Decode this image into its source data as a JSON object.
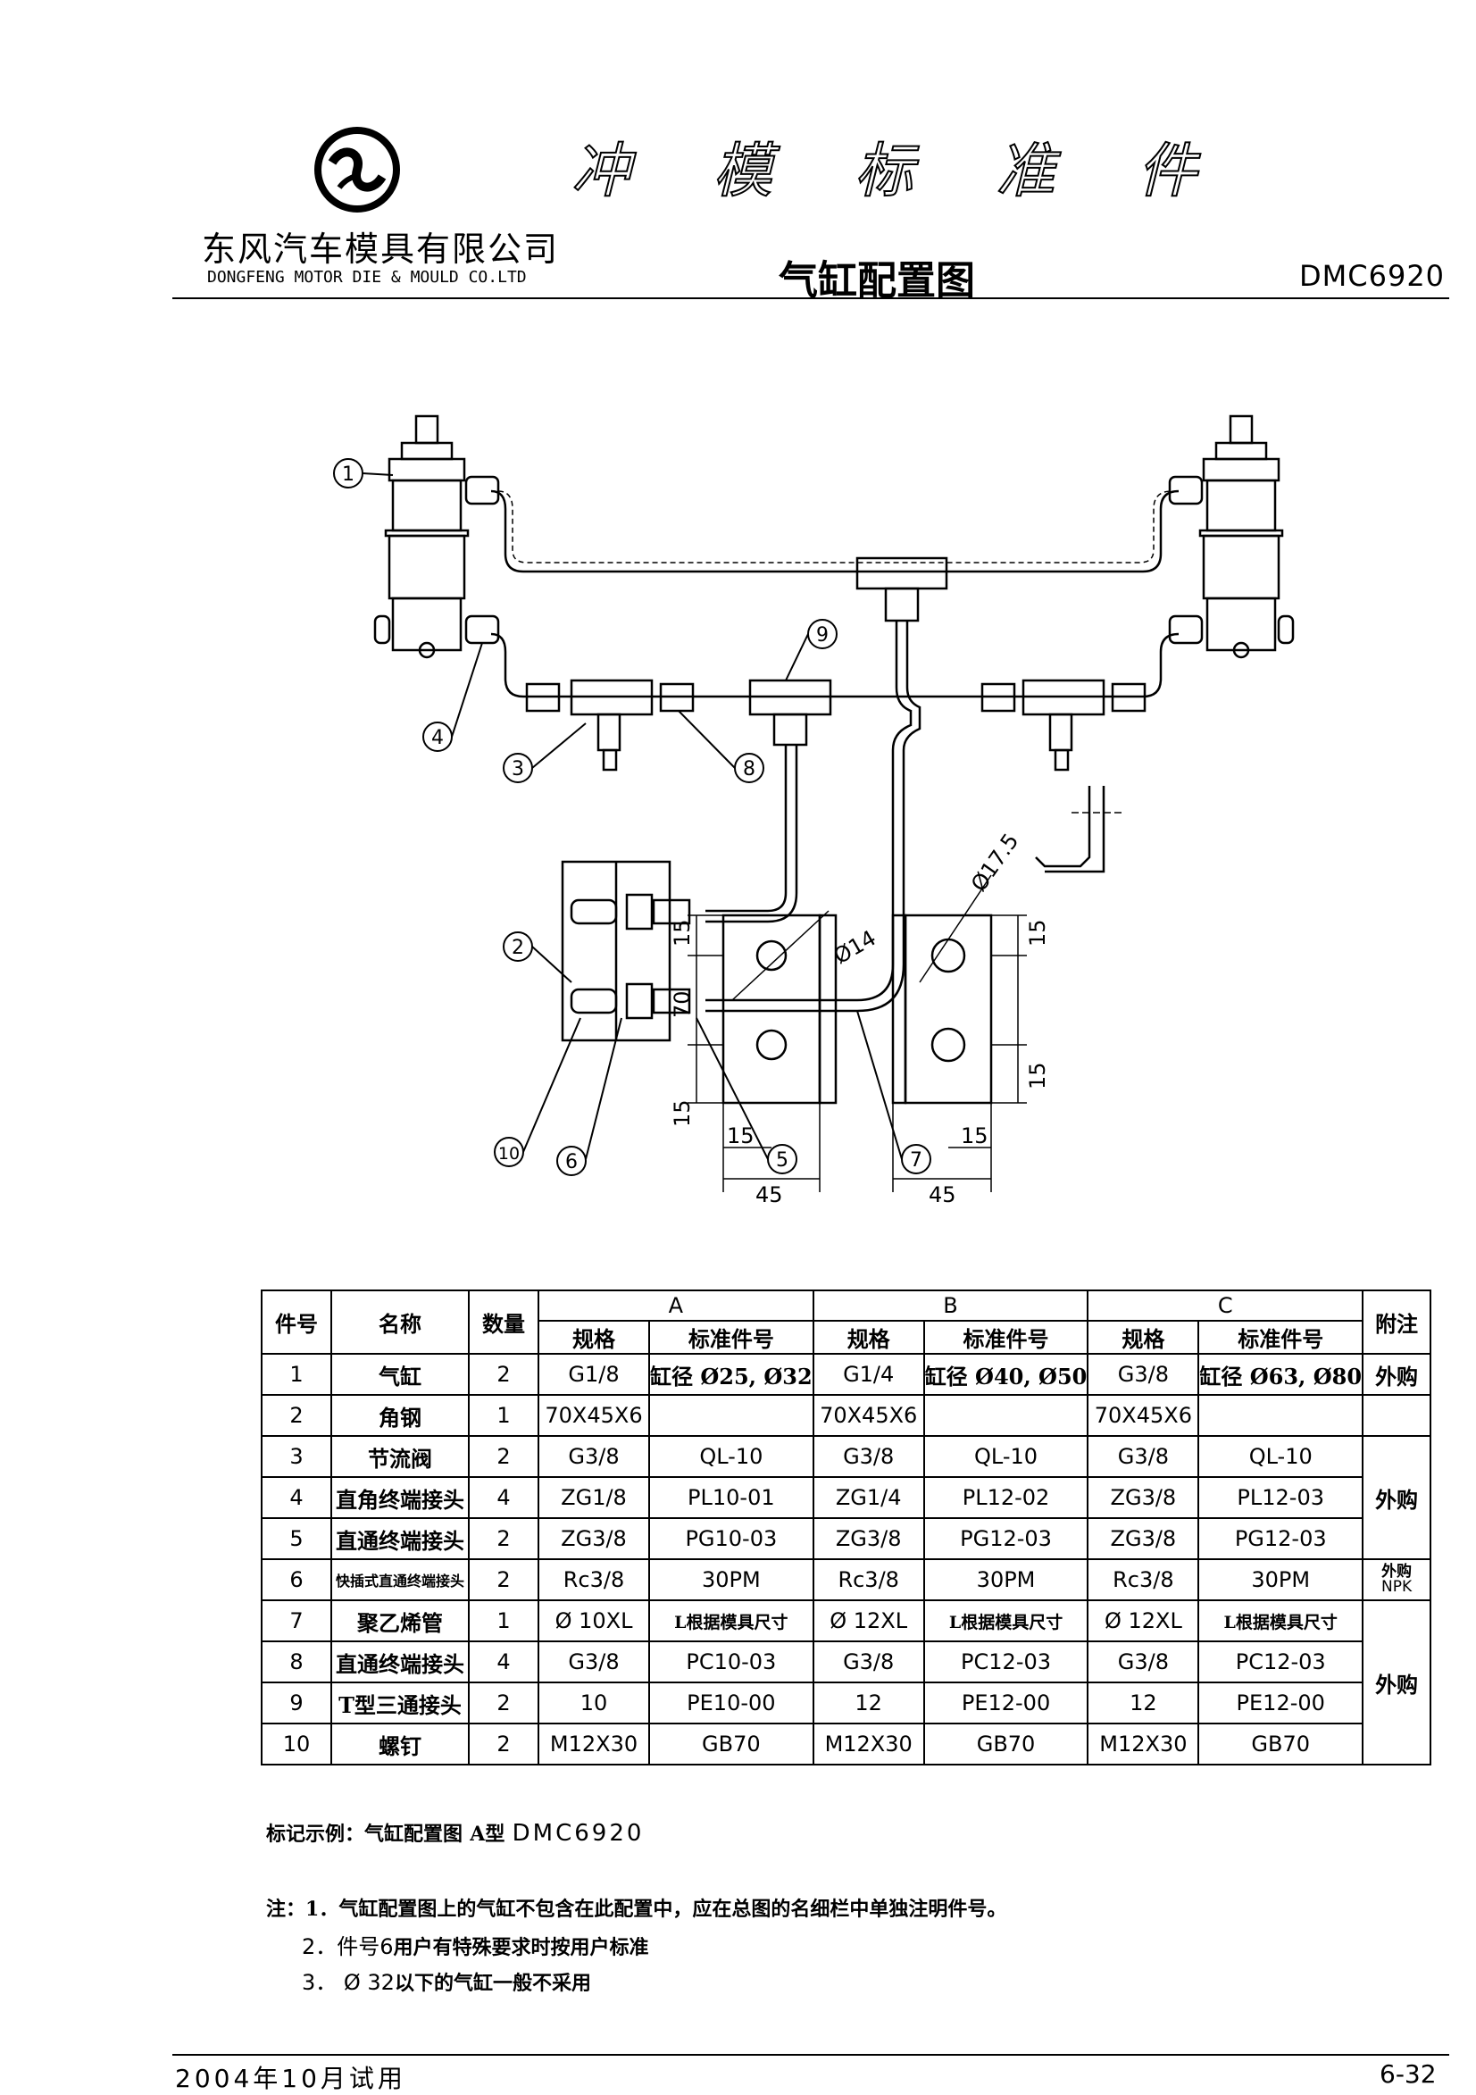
{
  "header": {
    "main_title_chars": [
      "冲",
      "模",
      "标",
      "准",
      "件"
    ],
    "company_cn": "东风汽车模具有限公司",
    "company_en": "DONGFENG MOTOR DIE & MOULD CO.LTD",
    "subtitle": "气缸配置图",
    "code": "DMC6920"
  },
  "drawing": {
    "callouts": [
      "1",
      "2",
      "3",
      "4",
      "5",
      "6",
      "7",
      "8",
      "9",
      "10"
    ],
    "dimensions": {
      "d14": "Ø14",
      "d175": "Ø17.5",
      "left_top": "15",
      "left_mid": "70",
      "left_bot": "15",
      "left_x15": "15",
      "left_w45": "45",
      "right_top": "15",
      "right_bot": "15",
      "right_x15": "15",
      "right_w45": "45"
    }
  },
  "table": {
    "headers": {
      "item": "件号",
      "name": "名称",
      "qty": "数量",
      "group_a": "A",
      "group_b": "B",
      "group_c": "C",
      "spec": "规格",
      "std": "标准件号",
      "remark": "附注"
    },
    "rows": [
      {
        "no": "1",
        "name": "气缸",
        "qty": "2",
        "a_spec": "G1/8",
        "a_std": "缸径 Ø25, Ø32",
        "b_spec": "G1/4",
        "b_std": "缸径 Ø40, Ø50",
        "c_spec": "G3/8",
        "c_std": "缸径 Ø63, Ø80"
      },
      {
        "no": "2",
        "name": "角钢",
        "qty": "1",
        "a_spec": "70X45X6",
        "a_std": "",
        "b_spec": "70X45X6",
        "b_std": "",
        "c_spec": "70X45X6",
        "c_std": ""
      },
      {
        "no": "3",
        "name": "节流阀",
        "qty": "2",
        "a_spec": "G3/8",
        "a_std": "QL-10",
        "b_spec": "G3/8",
        "b_std": "QL-10",
        "c_spec": "G3/8",
        "c_std": "QL-10"
      },
      {
        "no": "4",
        "name": "直角终端接头",
        "qty": "4",
        "a_spec": "ZG1/8",
        "a_std": "PL10-01",
        "b_spec": "ZG1/4",
        "b_std": "PL12-02",
        "c_spec": "ZG3/8",
        "c_std": "PL12-03"
      },
      {
        "no": "5",
        "name": "直通终端接头",
        "qty": "2",
        "a_spec": "ZG3/8",
        "a_std": "PG10-03",
        "b_spec": "ZG3/8",
        "b_std": "PG12-03",
        "c_spec": "ZG3/8",
        "c_std": "PG12-03"
      },
      {
        "no": "6",
        "name": "快插式直通终端接头",
        "qty": "2",
        "a_spec": "Rc3/8",
        "a_std": "30PM",
        "b_spec": "Rc3/8",
        "b_std": "30PM",
        "c_spec": "Rc3/8",
        "c_std": "30PM"
      },
      {
        "no": "7",
        "name": "聚乙烯管",
        "qty": "1",
        "a_spec": "Ø 10XL",
        "a_std": "L根据模具尺寸",
        "b_spec": "Ø 12XL",
        "b_std": "L根据模具尺寸",
        "c_spec": "Ø 12XL",
        "c_std": "L根据模具尺寸"
      },
      {
        "no": "8",
        "name": "直通终端接头",
        "qty": "4",
        "a_spec": "G3/8",
        "a_std": "PC10-03",
        "b_spec": "G3/8",
        "b_std": "PC12-03",
        "c_spec": "G3/8",
        "c_std": "PC12-03"
      },
      {
        "no": "9",
        "name": "T型三通接头",
        "qty": "2",
        "a_spec": "10",
        "a_std": "PE10-00",
        "b_spec": "12",
        "b_std": "PE12-00",
        "c_spec": "12",
        "c_std": "PE12-00"
      },
      {
        "no": "10",
        "name": "螺钉",
        "qty": "2",
        "a_spec": "M12X30",
        "a_std": "GB70",
        "b_spec": "M12X30",
        "b_std": "GB70",
        "c_spec": "M12X30",
        "c_std": "GB70"
      }
    ],
    "remarks": {
      "r1": "外购",
      "r3_5": "外购",
      "r6_line1": "外购",
      "r6_line2": "NPK",
      "r7_10": "外购"
    }
  },
  "notes": {
    "example_label": "标记示例：气缸配置图",
    "example_type": "A型",
    "example_code": "DMC6920",
    "note1_prefix": "注：1．",
    "note1_text": "气缸配置图上的气缸不包含在此配置中，应在总图的名细栏中单独注明件号。",
    "note2_prefix": "2．件号6",
    "note2_text": "用户有特殊要求时按用户标准",
    "note3_prefix": "3． Ø 32",
    "note3_text": "以下的气缸一般不采用"
  },
  "footer": {
    "left": "2004年10月试用",
    "right": "6-32"
  }
}
